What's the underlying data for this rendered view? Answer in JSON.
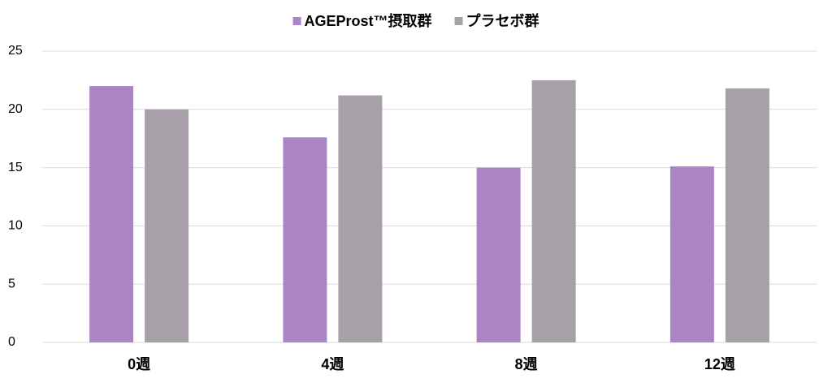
{
  "chart_data": {
    "type": "bar",
    "categories": [
      "0週",
      "4週",
      "8週",
      "12週"
    ],
    "series": [
      {
        "name": "AGEProst™摂取群",
        "color": "#ab84c6",
        "values": [
          22.0,
          17.6,
          15.0,
          15.1
        ]
      },
      {
        "name": "プラセボ群",
        "color": "#a8a0a8",
        "values": [
          20.0,
          21.2,
          22.5,
          21.8
        ]
      }
    ],
    "ylim": [
      0,
      25
    ],
    "yticks": [
      0,
      5,
      10,
      15,
      20,
      25
    ],
    "grid": true,
    "legend": "top"
  }
}
